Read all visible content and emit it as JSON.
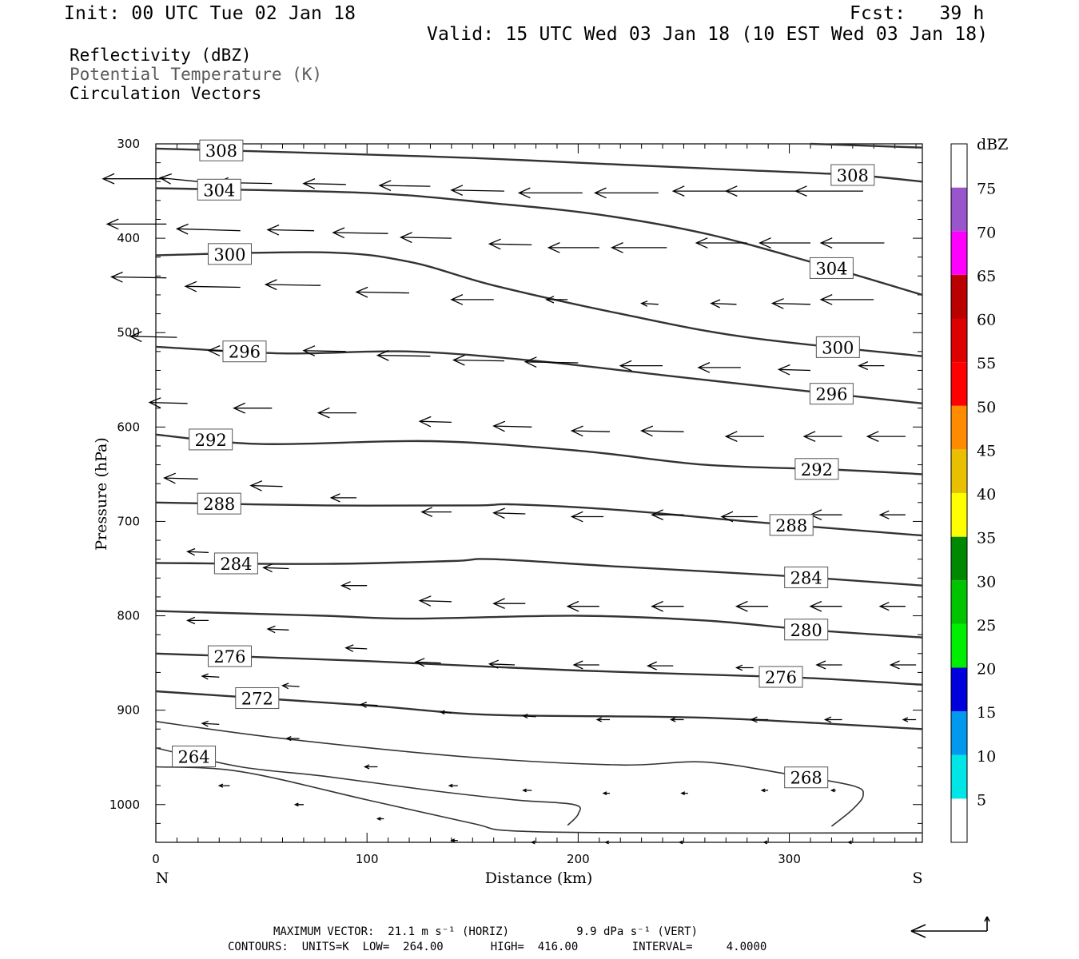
{
  "header": {
    "init": "Init: 00 UTC Tue 02 Jan 18",
    "fcst": "Fcst:   39 h",
    "valid": "Valid: 15 UTC Wed 03 Jan 18 (10 EST Wed 03 Jan 18)"
  },
  "fields": {
    "reflectivity": "Reflectivity (dBZ)",
    "theta": "Potential Temperature (K)",
    "vectors": "Circulation Vectors"
  },
  "footer": {
    "max_vector": "MAXIMUM VECTOR:  21.1 m s⁻¹ (HORIZ)          9.9 dPa s⁻¹ (VERT)",
    "contours": "CONTOURS:  UNITS=K  LOW=  264.00       HIGH=  416.00        INTERVAL=     4.0000"
  },
  "colors": {
    "contour": "#333333",
    "arrow": "#000000"
  },
  "chart_data": {
    "type": "cross-section",
    "x_axis": {
      "label": "Distance (km)",
      "range": [
        0,
        363
      ],
      "ticks": [
        0,
        100,
        200,
        300
      ],
      "left_end": "N",
      "right_end": "S"
    },
    "y_axis": {
      "label": "Pressure (hPa)",
      "range": [
        300,
        1040
      ],
      "ticks": [
        300,
        400,
        500,
        600,
        700,
        800,
        900,
        1000
      ],
      "inverted": true
    },
    "colorbar": {
      "unit": "dBZ",
      "labels": [
        "5",
        "10",
        "15",
        "20",
        "25",
        "30",
        "35",
        "40",
        "45",
        "50",
        "55",
        "60",
        "65",
        "70",
        "75"
      ],
      "colors": [
        "#ffffff",
        "#00e5e5",
        "#0099ee",
        "#0000dd",
        "#00ee00",
        "#00c400",
        "#008800",
        "#ffff00",
        "#e8c000",
        "#ff8c00",
        "#ff0000",
        "#dd0000",
        "#bb0000",
        "#ff00ff",
        "#9955cc",
        "#ffffff"
      ]
    },
    "contours": [
      {
        "label": "308",
        "points": [
          [
            0,
            305
          ],
          [
            80,
            310
          ],
          [
            150,
            315
          ],
          [
            220,
            322
          ],
          [
            280,
            328
          ],
          [
            330,
            333
          ],
          [
            363,
            340
          ]
        ]
      },
      {
        "label": "308",
        "points": [
          [
            310,
            300
          ],
          [
            363,
            304
          ]
        ]
      },
      {
        "label": "304",
        "points": [
          [
            0,
            347
          ],
          [
            100,
            352
          ],
          [
            160,
            363
          ],
          [
            210,
            375
          ],
          [
            260,
            395
          ],
          [
            310,
            425
          ],
          [
            363,
            460
          ]
        ]
      },
      {
        "label": "300",
        "points": [
          [
            0,
            418
          ],
          [
            80,
            415
          ],
          [
            120,
            425
          ],
          [
            160,
            450
          ],
          [
            220,
            480
          ],
          [
            280,
            505
          ],
          [
            363,
            525
          ]
        ]
      },
      {
        "label": "296",
        "points": [
          [
            0,
            515
          ],
          [
            60,
            522
          ],
          [
            120,
            520
          ],
          [
            180,
            530
          ],
          [
            240,
            545
          ],
          [
            300,
            560
          ],
          [
            363,
            575
          ]
        ]
      },
      {
        "label": "292",
        "points": [
          [
            0,
            608
          ],
          [
            50,
            618
          ],
          [
            130,
            615
          ],
          [
            200,
            625
          ],
          [
            260,
            640
          ],
          [
            320,
            645
          ],
          [
            363,
            650
          ]
        ]
      },
      {
        "label": "288",
        "points": [
          [
            0,
            680
          ],
          [
            80,
            683
          ],
          [
            150,
            683
          ],
          [
            170,
            682
          ],
          [
            220,
            688
          ],
          [
            280,
            700
          ],
          [
            363,
            715
          ]
        ]
      },
      {
        "label": "284",
        "points": [
          [
            0,
            744
          ],
          [
            80,
            745
          ],
          [
            140,
            742
          ],
          [
            160,
            740
          ],
          [
            220,
            748
          ],
          [
            300,
            758
          ],
          [
            363,
            768
          ]
        ]
      },
      {
        "label": "280",
        "points": [
          [
            0,
            795
          ],
          [
            80,
            800
          ],
          [
            120,
            803
          ],
          [
            200,
            800
          ],
          [
            260,
            805
          ],
          [
            310,
            815
          ],
          [
            363,
            823
          ]
        ]
      },
      {
        "label": "276",
        "points": [
          [
            0,
            840
          ],
          [
            100,
            848
          ],
          [
            200,
            858
          ],
          [
            300,
            865
          ],
          [
            363,
            873
          ]
        ]
      },
      {
        "label": "272",
        "points": [
          [
            0,
            880
          ],
          [
            100,
            895
          ],
          [
            160,
            905
          ],
          [
            260,
            908
          ],
          [
            363,
            920
          ]
        ]
      },
      {
        "label": "268",
        "points": [
          [
            0,
            912
          ],
          [
            60,
            930
          ],
          [
            150,
            950
          ],
          [
            220,
            958
          ],
          [
            260,
            955
          ],
          [
            300,
            968
          ],
          [
            330,
            980
          ],
          [
            335,
            990
          ],
          [
            330,
            1005
          ],
          [
            320,
            1023
          ]
        ]
      },
      {
        "label": "264",
        "points": [
          [
            0,
            940
          ],
          [
            40,
            960
          ],
          [
            80,
            970
          ],
          [
            130,
            985
          ],
          [
            170,
            995
          ],
          [
            198,
            1000
          ],
          [
            200,
            1010
          ],
          [
            195,
            1022
          ]
        ]
      },
      {
        "label": "",
        "points": [
          [
            0,
            960
          ],
          [
            40,
            965
          ],
          [
            100,
            995
          ],
          [
            150,
            1020
          ],
          [
            170,
            1028
          ],
          [
            240,
            1030
          ],
          [
            363,
            1030
          ]
        ]
      }
    ],
    "vectors": [
      [
        5,
        337,
        -30,
        0
      ],
      [
        20,
        340,
        -18,
        -4
      ],
      [
        55,
        342,
        -26,
        -1
      ],
      [
        90,
        343,
        -20,
        -1
      ],
      [
        130,
        345,
        -24,
        -1
      ],
      [
        165,
        350,
        -25,
        -1
      ],
      [
        202,
        352,
        -30,
        0
      ],
      [
        238,
        352,
        -30,
        0
      ],
      [
        275,
        350,
        -30,
        0
      ],
      [
        305,
        350,
        -35,
        0
      ],
      [
        335,
        350,
        -32,
        0
      ],
      [
        5,
        385,
        -28,
        0
      ],
      [
        40,
        392,
        -30,
        -2
      ],
      [
        75,
        392,
        -22,
        -1
      ],
      [
        110,
        395,
        -26,
        -1
      ],
      [
        140,
        400,
        -24,
        -1
      ],
      [
        178,
        407,
        -20,
        -1
      ],
      [
        210,
        410,
        -24,
        0
      ],
      [
        242,
        410,
        -26,
        0
      ],
      [
        280,
        405,
        -24,
        0
      ],
      [
        310,
        405,
        -24,
        0
      ],
      [
        345,
        405,
        -30,
        0
      ],
      [
        5,
        442,
        -26,
        -1
      ],
      [
        40,
        452,
        -26,
        -1
      ],
      [
        78,
        450,
        -26,
        -1
      ],
      [
        120,
        458,
        -25,
        -1
      ],
      [
        160,
        465,
        -20,
        0
      ],
      [
        195,
        465,
        -10,
        0
      ],
      [
        238,
        470,
        -8,
        -1
      ],
      [
        275,
        470,
        -12,
        -1
      ],
      [
        310,
        470,
        -18,
        -1
      ],
      [
        340,
        465,
        -25,
        0
      ],
      [
        10,
        505,
        -22,
        -1
      ],
      [
        50,
        520,
        -25,
        -1
      ],
      [
        90,
        520,
        -20,
        -1
      ],
      [
        130,
        525,
        -25,
        -1
      ],
      [
        165,
        530,
        -24,
        -1
      ],
      [
        200,
        532,
        -25,
        -1
      ],
      [
        240,
        535,
        -20,
        0
      ],
      [
        277,
        537,
        -20,
        0
      ],
      [
        310,
        540,
        -15,
        -1
      ],
      [
        345,
        535,
        -12,
        0
      ],
      [
        15,
        575,
        -18,
        -1
      ],
      [
        55,
        580,
        -18,
        0
      ],
      [
        95,
        585,
        -18,
        0
      ],
      [
        140,
        595,
        -15,
        -1
      ],
      [
        178,
        600,
        -18,
        -1
      ],
      [
        215,
        605,
        -18,
        -1
      ],
      [
        250,
        605,
        -20,
        -1
      ],
      [
        288,
        610,
        -18,
        0
      ],
      [
        325,
        610,
        -18,
        0
      ],
      [
        355,
        610,
        -18,
        0
      ],
      [
        20,
        655,
        -16,
        -1
      ],
      [
        60,
        663,
        -15,
        -1
      ],
      [
        95,
        675,
        -12,
        0
      ],
      [
        140,
        690,
        -14,
        0
      ],
      [
        175,
        692,
        -15,
        -1
      ],
      [
        212,
        695,
        -15,
        0
      ],
      [
        250,
        693,
        -15,
        0
      ],
      [
        285,
        695,
        -17,
        0
      ],
      [
        325,
        693,
        -15,
        0
      ],
      [
        355,
        693,
        -12,
        0
      ],
      [
        25,
        733,
        -10,
        -1
      ],
      [
        63,
        750,
        -12,
        -1
      ],
      [
        100,
        768,
        -12,
        0
      ],
      [
        140,
        785,
        -15,
        -1
      ],
      [
        175,
        787,
        -15,
        0
      ],
      [
        210,
        790,
        -15,
        0
      ],
      [
        250,
        790,
        -15,
        0
      ],
      [
        290,
        790,
        -15,
        0
      ],
      [
        325,
        790,
        -15,
        0
      ],
      [
        355,
        790,
        -12,
        0
      ],
      [
        25,
        805,
        -10,
        0
      ],
      [
        63,
        815,
        -10,
        -1
      ],
      [
        100,
        835,
        -10,
        -1
      ],
      [
        135,
        850,
        -12,
        -1
      ],
      [
        170,
        852,
        -12,
        -1
      ],
      [
        210,
        852,
        -12,
        0
      ],
      [
        245,
        853,
        -12,
        0
      ],
      [
        283,
        855,
        -8,
        0
      ],
      [
        325,
        852,
        -12,
        0
      ],
      [
        360,
        852,
        -12,
        0
      ],
      [
        30,
        865,
        -8,
        -1
      ],
      [
        68,
        875,
        -8,
        -1
      ],
      [
        105,
        895,
        -8,
        -1
      ],
      [
        140,
        903,
        -5,
        -1
      ],
      [
        180,
        907,
        -6,
        -1
      ],
      [
        215,
        910,
        -6,
        0
      ],
      [
        250,
        910,
        -6,
        0
      ],
      [
        290,
        910,
        -8,
        0
      ],
      [
        325,
        910,
        -8,
        0
      ],
      [
        360,
        910,
        -6,
        0
      ],
      [
        30,
        915,
        -8,
        -1
      ],
      [
        68,
        930,
        -6,
        0
      ],
      [
        105,
        960,
        -6,
        0
      ],
      [
        143,
        980,
        -4,
        0
      ],
      [
        178,
        985,
        -4,
        0
      ],
      [
        215,
        988,
        -3,
        0
      ],
      [
        252,
        988,
        -3,
        0
      ],
      [
        290,
        985,
        -3,
        0
      ],
      [
        322,
        985,
        -2,
        0
      ],
      [
        35,
        980,
        -5,
        0
      ],
      [
        70,
        1000,
        -4,
        0
      ],
      [
        108,
        1015,
        -3,
        0
      ],
      [
        143,
        1038,
        -3,
        0
      ],
      [
        180,
        1040,
        -2,
        0
      ],
      [
        215,
        1040,
        -2,
        0
      ],
      [
        250,
        1040,
        -2,
        0
      ],
      [
        290,
        1040,
        -2,
        0
      ],
      [
        330,
        1040,
        -2,
        0
      ]
    ]
  }
}
